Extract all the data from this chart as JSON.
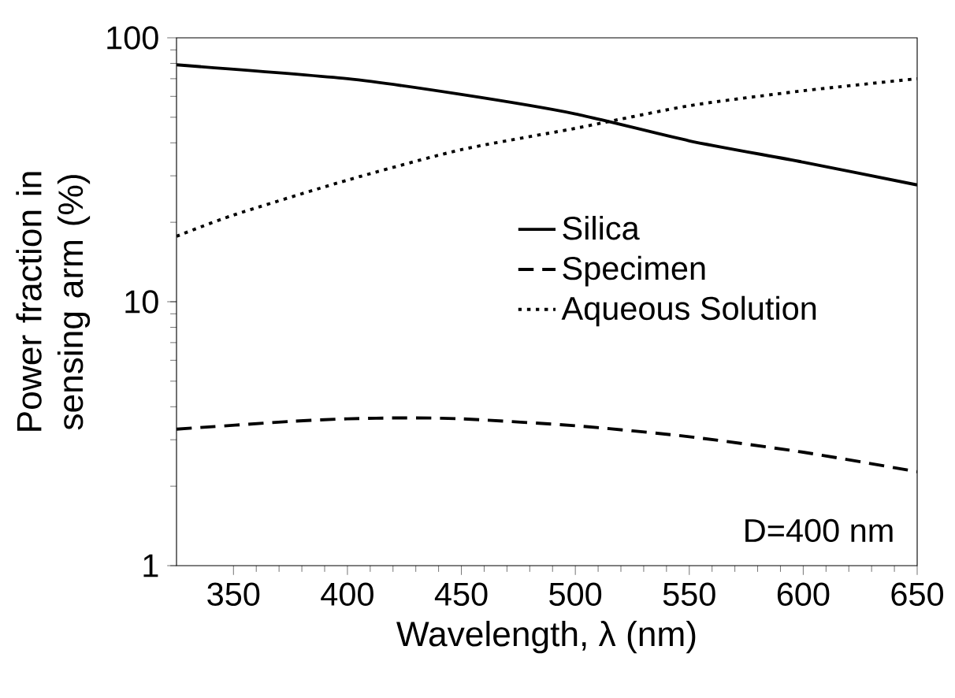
{
  "chart_data": {
    "type": "line",
    "xlabel": "Wavelength, λ (nm)",
    "ylabel": "Power fraction in sensing arm (%)",
    "log": "y",
    "xlim": [
      325,
      650
    ],
    "ylim": [
      1,
      100
    ],
    "xticks": [
      350,
      400,
      450,
      500,
      550,
      600,
      650
    ],
    "yticks": [
      1,
      10,
      100
    ],
    "grid": false,
    "legend": "right",
    "marker": "none",
    "annotations": [
      "D=400 nm"
    ],
    "series": [
      {
        "name": "Silica",
        "color": "#000000",
        "line_style": "solid",
        "x": [
          325,
          400,
          450,
          500,
          550,
          600,
          650
        ],
        "values": [
          79,
          70,
          61,
          51.5,
          40.7,
          33.8,
          27.7
        ]
      },
      {
        "name": "Specimen",
        "color": "#000000",
        "line_style": "dashed",
        "x": [
          325,
          375,
          400,
          425,
          450,
          500,
          550,
          600,
          650
        ],
        "values": [
          3.29,
          3.52,
          3.6,
          3.63,
          3.6,
          3.39,
          3.08,
          2.69,
          2.27
        ]
      },
      {
        "name": "Aqueous Solution",
        "color": "#000000",
        "line_style": "dotted",
        "x": [
          325,
          350,
          400,
          450,
          500,
          550,
          600,
          650
        ],
        "values": [
          17.7,
          21.3,
          28.9,
          37.7,
          45.4,
          55.3,
          63,
          70
        ]
      }
    ]
  }
}
